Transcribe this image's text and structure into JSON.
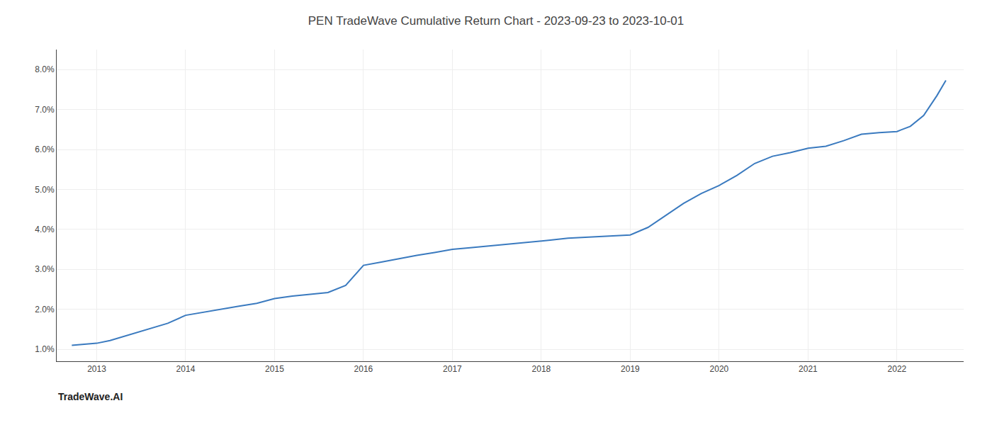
{
  "chart_data": {
    "type": "line",
    "title": "PEN TradeWave Cumulative Return Chart - 2023-09-23 to 2023-10-01",
    "annotations": [
      {
        "text": "TradeWave.AI"
      }
    ],
    "x": [
      2012.72,
      2013.0,
      2013.15,
      2013.3,
      2013.5,
      2013.65,
      2013.8,
      2014.0,
      2014.2,
      2014.4,
      2014.6,
      2014.8,
      2015.0,
      2015.2,
      2015.4,
      2015.6,
      2015.8,
      2016.0,
      2016.2,
      2016.4,
      2016.6,
      2016.8,
      2017.0,
      2017.2,
      2017.4,
      2017.6,
      2017.8,
      2018.0,
      2018.1,
      2018.3,
      2018.5,
      2018.7,
      2018.9,
      2019.0,
      2019.2,
      2019.4,
      2019.6,
      2019.8,
      2020.0,
      2020.2,
      2020.4,
      2020.6,
      2020.8,
      2021.0,
      2021.2,
      2021.4,
      2021.6,
      2021.8,
      2022.0,
      2022.15,
      2022.3,
      2022.45,
      2022.55
    ],
    "values": [
      1.1,
      1.15,
      1.22,
      1.32,
      1.45,
      1.55,
      1.65,
      1.85,
      1.93,
      2.0,
      2.08,
      2.15,
      2.27,
      2.33,
      2.38,
      2.42,
      2.6,
      3.1,
      3.18,
      3.27,
      3.35,
      3.42,
      3.5,
      3.54,
      3.58,
      3.62,
      3.67,
      3.7,
      3.73,
      3.78,
      3.8,
      3.82,
      3.84,
      3.86,
      4.05,
      4.35,
      4.65,
      4.9,
      5.1,
      5.35,
      5.65,
      5.83,
      5.92,
      6.03,
      6.08,
      6.22,
      6.38,
      6.42,
      6.45,
      6.58,
      6.85,
      7.35,
      7.73
    ],
    "color": "#3a7abf",
    "xlim": [
      2012.55,
      2022.75
    ],
    "xticks": [
      2013,
      2014,
      2015,
      2016,
      2017,
      2018,
      2019,
      2020,
      2021,
      2022
    ],
    "ylim": [
      0.7,
      8.5
    ],
    "yticks": [
      {
        "value": 1.0,
        "label": "1.0%"
      },
      {
        "value": 2.0,
        "label": "2.0%"
      },
      {
        "value": 3.0,
        "label": "3.0%"
      },
      {
        "value": 4.0,
        "label": "4.0%"
      },
      {
        "value": 5.0,
        "label": "5.0%"
      },
      {
        "value": 6.0,
        "label": "6.0%"
      },
      {
        "value": 7.0,
        "label": "7.0%"
      },
      {
        "value": 8.0,
        "label": "8.0%"
      }
    ],
    "grid": true
  }
}
